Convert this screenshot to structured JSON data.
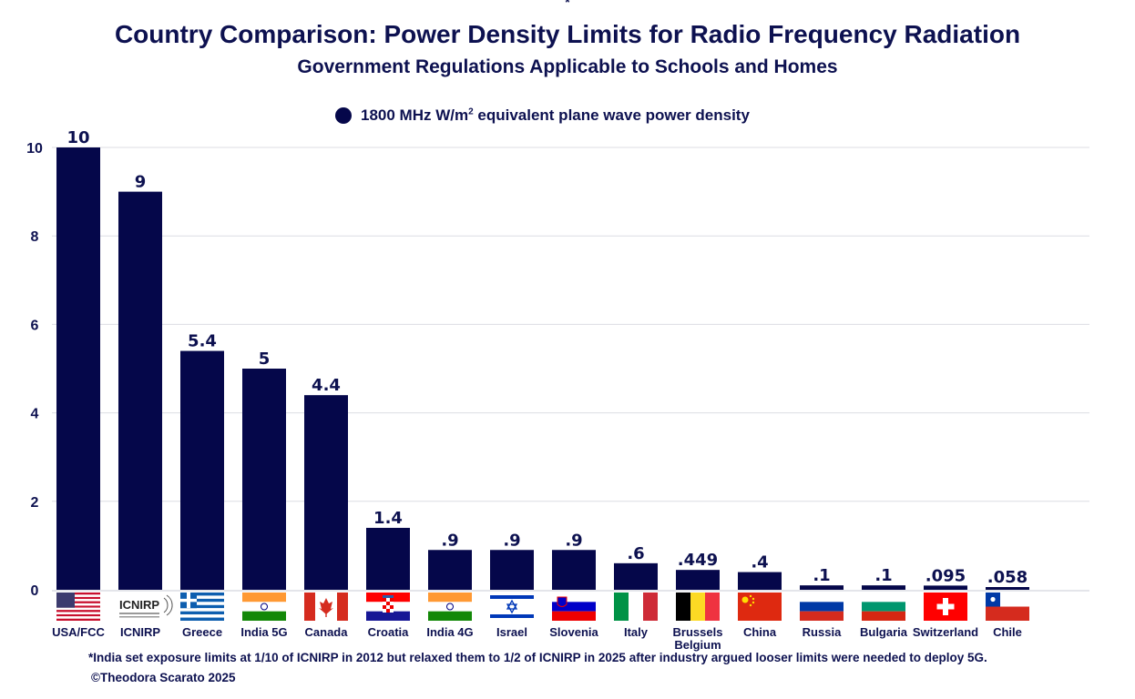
{
  "asterisk": "*",
  "chart_data": {
    "type": "bar",
    "title": "Country Comparison: Power Density Limits for Radio Frequency Radiation",
    "subtitle": "Government Regulations Applicable to Schools and Homes",
    "legend": {
      "position": "top",
      "label_main": "1800 MHz W/m",
      "label_sup": "2",
      "label_rest": " equivalent plane wave power density"
    },
    "series": [
      {
        "name": "1800 MHz W/m2 equivalent plane wave power density",
        "color": "#05074a"
      }
    ],
    "categories": [
      "USA/FCC",
      "ICNIRP",
      "Greece",
      "India 5G",
      "Canada",
      "Croatia",
      "India 4G",
      "Israel",
      "Slovenia",
      "Italy",
      "Brussels Belgium",
      "China",
      "Russia",
      "Bulgaria",
      "Switzerland",
      "Chile"
    ],
    "category_lines": [
      [
        "USA/FCC"
      ],
      [
        "ICNIRP"
      ],
      [
        "Greece"
      ],
      [
        "India 5G"
      ],
      [
        "Canada"
      ],
      [
        "Croatia"
      ],
      [
        "India 4G"
      ],
      [
        "Israel"
      ],
      [
        "Slovenia"
      ],
      [
        "Italy"
      ],
      [
        "Brussels",
        "Belgium"
      ],
      [
        "China"
      ],
      [
        "Russia"
      ],
      [
        "Bulgaria"
      ],
      [
        "Switzerland"
      ],
      [
        "Chile"
      ]
    ],
    "flags": [
      "usa-flag",
      "icnirp-logo",
      "greece-flag",
      "india-flag",
      "canada-flag",
      "croatia-flag",
      "india-flag",
      "israel-flag",
      "slovenia-flag",
      "italy-flag",
      "belgium-flag",
      "china-flag",
      "russia-flag",
      "bulgaria-flag",
      "switzerland-flag",
      "chile-flag"
    ],
    "values": [
      10,
      9,
      5.4,
      5,
      4.4,
      1.4,
      0.9,
      0.9,
      0.9,
      0.6,
      0.449,
      0.4,
      0.1,
      0.1,
      0.095,
      0.058
    ],
    "data_labels": [
      "10",
      "9",
      "5.4",
      "5",
      "4.4",
      "1.4",
      ".9",
      ".9",
      ".9",
      ".6",
      ".449",
      ".4",
      ".1",
      ".1",
      ".095",
      ".058"
    ],
    "yticks": [
      0,
      2,
      4,
      6,
      8,
      10
    ],
    "ylim": [
      0,
      10
    ],
    "grid": true,
    "xlabel": "",
    "ylabel": ""
  },
  "footnote": "*India set exposure limits at 1/10 of ICNIRP in 2012 but relaxed them to 1/2 of ICNIRP in 2025 after industry argued looser limits were needed to deploy 5G.",
  "credit": "©Theodora Scarato 2025",
  "icnirp_logo_text": "ICNIRP"
}
